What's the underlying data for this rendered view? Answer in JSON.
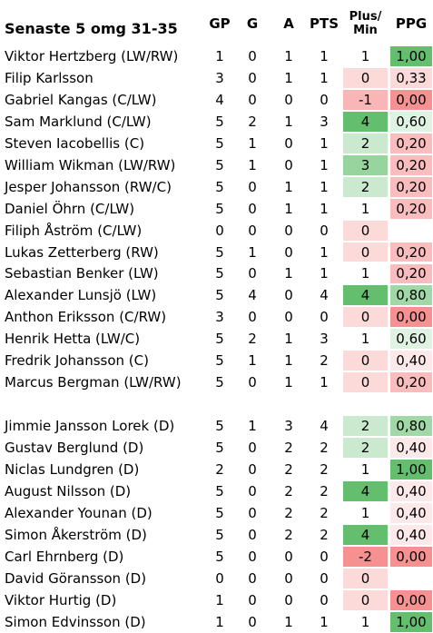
{
  "header": {
    "title": "Senaste 5 omg 31-35",
    "columns": [
      "GP",
      "G",
      "A",
      "PTS",
      "Plus/\nMin",
      "PPG"
    ]
  },
  "groups": [
    {
      "rows": [
        [
          "Viktor Hertzberg (LW/RW)",
          1,
          0,
          1,
          1,
          1,
          "1,00"
        ],
        [
          "Filip Karlsson",
          3,
          0,
          1,
          1,
          0,
          "0,33"
        ],
        [
          "Gabriel Kangas (C/LW)",
          4,
          0,
          0,
          0,
          -1,
          "0,00"
        ],
        [
          "Sam Marklund (C/LW)",
          5,
          2,
          1,
          3,
          4,
          "0,60"
        ],
        [
          "Steven Iacobellis (C)",
          5,
          1,
          0,
          1,
          2,
          "0,20"
        ],
        [
          "William Wikman (LW/RW)",
          5,
          1,
          0,
          1,
          3,
          "0,20"
        ],
        [
          "Jesper Johansson (RW/C)",
          5,
          0,
          1,
          1,
          2,
          "0,20"
        ],
        [
          "Daniel Öhrn (C/LW)",
          5,
          0,
          1,
          1,
          1,
          "0,20"
        ],
        [
          "Filiph Åström (C/LW)",
          0,
          0,
          0,
          0,
          0,
          null
        ],
        [
          "Lukas Zetterberg (RW)",
          5,
          1,
          0,
          1,
          0,
          "0,20"
        ],
        [
          "Sebastian Benker (LW)",
          5,
          0,
          1,
          1,
          1,
          "0,20"
        ],
        [
          "Alexander Lunsjö (LW)",
          5,
          4,
          0,
          4,
          4,
          "0,80"
        ],
        [
          "Anthon Eriksson (C/RW)",
          3,
          0,
          0,
          0,
          0,
          "0,00"
        ],
        [
          "Henrik Hetta (LW/C)",
          5,
          2,
          1,
          3,
          1,
          "0,60"
        ],
        [
          "Fredrik Johansson (C)",
          5,
          1,
          1,
          2,
          0,
          "0,40"
        ],
        [
          "Marcus Bergman (LW/RW)",
          5,
          0,
          1,
          1,
          0,
          "0,20"
        ]
      ]
    },
    {
      "rows": [
        [
          "Jimmie Jansson Lorek (D)",
          5,
          1,
          3,
          4,
          2,
          "0,80"
        ],
        [
          "Gustav Berglund (D)",
          5,
          0,
          2,
          2,
          2,
          "0,40"
        ],
        [
          "Niclas Lundgren (D)",
          2,
          0,
          2,
          2,
          1,
          "1,00"
        ],
        [
          "August Nilsson (D)",
          5,
          0,
          2,
          2,
          4,
          "0,40"
        ],
        [
          "Alexander Younan (D)",
          5,
          0,
          2,
          2,
          1,
          "0,40"
        ],
        [
          "Simon Åkerström (D)",
          5,
          0,
          2,
          2,
          4,
          "0,40"
        ],
        [
          "Carl Ehrnberg (D)",
          5,
          0,
          0,
          0,
          -2,
          "0,00"
        ],
        [
          "David Göransson (D)",
          0,
          0,
          0,
          0,
          0,
          null
        ],
        [
          "Viktor Hurtig (D)",
          1,
          0,
          0,
          0,
          0,
          "0,00"
        ],
        [
          "Simon Edvinsson (D)",
          1,
          0,
          1,
          1,
          1,
          "1,00"
        ]
      ]
    }
  ]
}
